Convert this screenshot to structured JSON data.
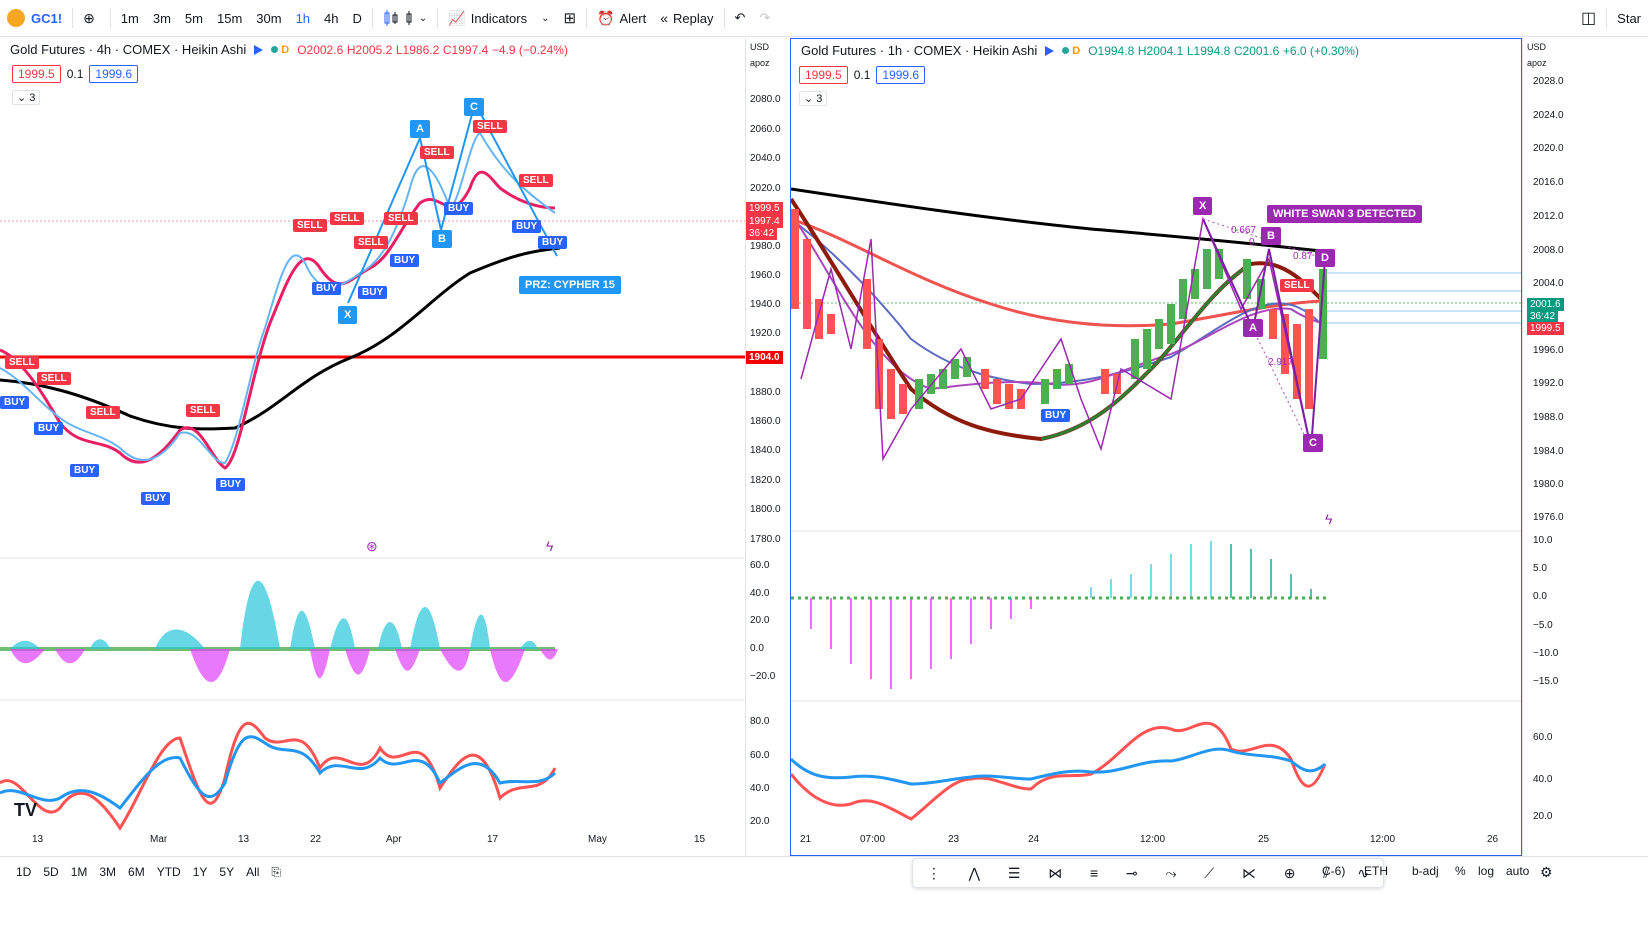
{
  "topbar": {
    "symbol": "GC1!",
    "intervals": [
      "1m",
      "3m",
      "5m",
      "15m",
      "30m",
      "1h",
      "4h",
      "D"
    ],
    "active_interval": "1h",
    "indicators_label": "Indicators",
    "alert_label": "Alert",
    "replay_label": "Replay",
    "star_label": "Star"
  },
  "left_chart": {
    "title": "Gold Futures · 4h · COMEX · Heikin Ashi",
    "session_tag": "D",
    "ohlc": {
      "o": "O2002.6",
      "h": "H2005.2",
      "l": "L1986.2",
      "c": "C1997.4",
      "chg": "−4.9 (−0.24%)"
    },
    "sell_price": "1999.5",
    "spread": "0.1",
    "buy_price": "1999.6",
    "collapse_count": "3",
    "axis_unit": "USD",
    "axis_ctrl": "apoz",
    "y_ticks": [
      "2080.0",
      "2060.0",
      "2040.0",
      "2020.0",
      "1980.0",
      "1960.0",
      "1940.0",
      "1920.0",
      "1880.0",
      "1860.0",
      "1840.0",
      "1820.0",
      "1800.0",
      "1780.0"
    ],
    "price_tags": {
      "last": "1999.5",
      "close": "1997.4",
      "timer": "36:42",
      "line": "1904.0"
    },
    "osc_ticks": [
      "60.0",
      "40.0",
      "20.0",
      "0.0",
      "−20.0"
    ],
    "rsi_ticks": [
      "80.0",
      "60.0",
      "40.0",
      "20.0"
    ],
    "x_ticks": [
      "13",
      "Mar",
      "13",
      "22",
      "Apr",
      "17",
      "May",
      "15"
    ],
    "pattern_labels": {
      "a": "A",
      "b": "B",
      "c": "C",
      "x": "X",
      "przs": "PRZ: CYPHER 15"
    },
    "signal_buy": "BUY",
    "signal_sell": "SELL"
  },
  "right_chart": {
    "title": "Gold Futures · 1h · COMEX · Heikin Ashi",
    "session_tag": "D",
    "ohlc": {
      "o": "O1994.8",
      "h": "H2004.1",
      "l": "L1994.8",
      "c": "C2001.6",
      "chg": "+6.0 (+0.30%)"
    },
    "sell_price": "1999.5",
    "spread": "0.1",
    "buy_price": "1999.6",
    "collapse_count": "3",
    "axis_unit": "USD",
    "axis_ctrl": "apoz",
    "y_ticks": [
      "2028.0",
      "2024.0",
      "2020.0",
      "2016.0",
      "2012.0",
      "2008.0",
      "2004.0",
      "1996.0",
      "1992.0",
      "1988.0",
      "1984.0",
      "1980.0",
      "1976.0"
    ],
    "price_tags": {
      "last": "2001.6",
      "timer": "36:42",
      "bid": "1999.5"
    },
    "osc_ticks": [
      "10.0",
      "5.0",
      "0.0",
      "−5.0",
      "−10.0",
      "−15.0"
    ],
    "rsi_ticks": [
      "60.0",
      "40.0",
      "20.0"
    ],
    "x_ticks": [
      "21",
      "07:00",
      "23",
      "24",
      "12:00",
      "25",
      "12:00",
      "26"
    ],
    "pattern_labels": {
      "x": "X",
      "a": "A",
      "b": "B",
      "c": "C",
      "d": "D"
    },
    "swan_label": "WHITE SWAN 3 DETECTED",
    "fib1": "0.667",
    "fib2": "2.917",
    "fib3": "0.87",
    "fib4": "0.",
    "signal_buy": "BUY",
    "signal_sell": "SELL"
  },
  "bottombar": {
    "ranges": [
      "1D",
      "5D",
      "1M",
      "3M",
      "6M",
      "YTD",
      "1Y",
      "5Y",
      "All"
    ],
    "tz_fragment": "C-6)",
    "session": "ETH",
    "adj": "b-adj",
    "pct": "%",
    "log": "log",
    "auto": "auto"
  },
  "colors": {
    "accent": "#2962ff",
    "up": "#26a69a",
    "down": "#f23645",
    "ma_black": "#000000",
    "ma_red": "#e91e63",
    "pattern": "#9c27b0"
  }
}
